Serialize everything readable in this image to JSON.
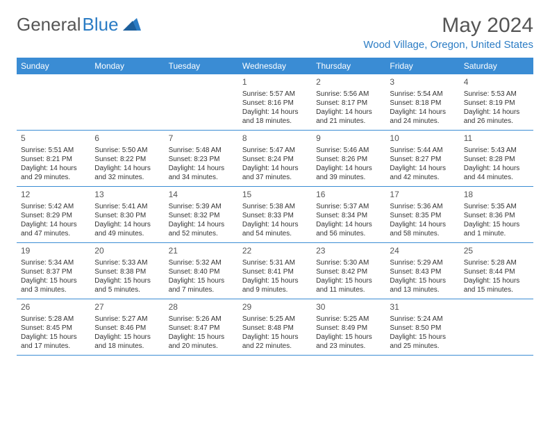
{
  "logo": {
    "text1": "General",
    "text2": "Blue"
  },
  "title": "May 2024",
  "location": "Wood Village, Oregon, United States",
  "colors": {
    "brand": "#3a8cd4",
    "text": "#333333",
    "muted": "#555555"
  },
  "dayHeaders": [
    "Sunday",
    "Monday",
    "Tuesday",
    "Wednesday",
    "Thursday",
    "Friday",
    "Saturday"
  ],
  "weeks": [
    [
      null,
      null,
      null,
      {
        "n": "1",
        "sr": "Sunrise: 5:57 AM",
        "ss": "Sunset: 8:16 PM",
        "d1": "Daylight: 14 hours",
        "d2": "and 18 minutes."
      },
      {
        "n": "2",
        "sr": "Sunrise: 5:56 AM",
        "ss": "Sunset: 8:17 PM",
        "d1": "Daylight: 14 hours",
        "d2": "and 21 minutes."
      },
      {
        "n": "3",
        "sr": "Sunrise: 5:54 AM",
        "ss": "Sunset: 8:18 PM",
        "d1": "Daylight: 14 hours",
        "d2": "and 24 minutes."
      },
      {
        "n": "4",
        "sr": "Sunrise: 5:53 AM",
        "ss": "Sunset: 8:19 PM",
        "d1": "Daylight: 14 hours",
        "d2": "and 26 minutes."
      }
    ],
    [
      {
        "n": "5",
        "sr": "Sunrise: 5:51 AM",
        "ss": "Sunset: 8:21 PM",
        "d1": "Daylight: 14 hours",
        "d2": "and 29 minutes."
      },
      {
        "n": "6",
        "sr": "Sunrise: 5:50 AM",
        "ss": "Sunset: 8:22 PM",
        "d1": "Daylight: 14 hours",
        "d2": "and 32 minutes."
      },
      {
        "n": "7",
        "sr": "Sunrise: 5:48 AM",
        "ss": "Sunset: 8:23 PM",
        "d1": "Daylight: 14 hours",
        "d2": "and 34 minutes."
      },
      {
        "n": "8",
        "sr": "Sunrise: 5:47 AM",
        "ss": "Sunset: 8:24 PM",
        "d1": "Daylight: 14 hours",
        "d2": "and 37 minutes."
      },
      {
        "n": "9",
        "sr": "Sunrise: 5:46 AM",
        "ss": "Sunset: 8:26 PM",
        "d1": "Daylight: 14 hours",
        "d2": "and 39 minutes."
      },
      {
        "n": "10",
        "sr": "Sunrise: 5:44 AM",
        "ss": "Sunset: 8:27 PM",
        "d1": "Daylight: 14 hours",
        "d2": "and 42 minutes."
      },
      {
        "n": "11",
        "sr": "Sunrise: 5:43 AM",
        "ss": "Sunset: 8:28 PM",
        "d1": "Daylight: 14 hours",
        "d2": "and 44 minutes."
      }
    ],
    [
      {
        "n": "12",
        "sr": "Sunrise: 5:42 AM",
        "ss": "Sunset: 8:29 PM",
        "d1": "Daylight: 14 hours",
        "d2": "and 47 minutes."
      },
      {
        "n": "13",
        "sr": "Sunrise: 5:41 AM",
        "ss": "Sunset: 8:30 PM",
        "d1": "Daylight: 14 hours",
        "d2": "and 49 minutes."
      },
      {
        "n": "14",
        "sr": "Sunrise: 5:39 AM",
        "ss": "Sunset: 8:32 PM",
        "d1": "Daylight: 14 hours",
        "d2": "and 52 minutes."
      },
      {
        "n": "15",
        "sr": "Sunrise: 5:38 AM",
        "ss": "Sunset: 8:33 PM",
        "d1": "Daylight: 14 hours",
        "d2": "and 54 minutes."
      },
      {
        "n": "16",
        "sr": "Sunrise: 5:37 AM",
        "ss": "Sunset: 8:34 PM",
        "d1": "Daylight: 14 hours",
        "d2": "and 56 minutes."
      },
      {
        "n": "17",
        "sr": "Sunrise: 5:36 AM",
        "ss": "Sunset: 8:35 PM",
        "d1": "Daylight: 14 hours",
        "d2": "and 58 minutes."
      },
      {
        "n": "18",
        "sr": "Sunrise: 5:35 AM",
        "ss": "Sunset: 8:36 PM",
        "d1": "Daylight: 15 hours",
        "d2": "and 1 minute."
      }
    ],
    [
      {
        "n": "19",
        "sr": "Sunrise: 5:34 AM",
        "ss": "Sunset: 8:37 PM",
        "d1": "Daylight: 15 hours",
        "d2": "and 3 minutes."
      },
      {
        "n": "20",
        "sr": "Sunrise: 5:33 AM",
        "ss": "Sunset: 8:38 PM",
        "d1": "Daylight: 15 hours",
        "d2": "and 5 minutes."
      },
      {
        "n": "21",
        "sr": "Sunrise: 5:32 AM",
        "ss": "Sunset: 8:40 PM",
        "d1": "Daylight: 15 hours",
        "d2": "and 7 minutes."
      },
      {
        "n": "22",
        "sr": "Sunrise: 5:31 AM",
        "ss": "Sunset: 8:41 PM",
        "d1": "Daylight: 15 hours",
        "d2": "and 9 minutes."
      },
      {
        "n": "23",
        "sr": "Sunrise: 5:30 AM",
        "ss": "Sunset: 8:42 PM",
        "d1": "Daylight: 15 hours",
        "d2": "and 11 minutes."
      },
      {
        "n": "24",
        "sr": "Sunrise: 5:29 AM",
        "ss": "Sunset: 8:43 PM",
        "d1": "Daylight: 15 hours",
        "d2": "and 13 minutes."
      },
      {
        "n": "25",
        "sr": "Sunrise: 5:28 AM",
        "ss": "Sunset: 8:44 PM",
        "d1": "Daylight: 15 hours",
        "d2": "and 15 minutes."
      }
    ],
    [
      {
        "n": "26",
        "sr": "Sunrise: 5:28 AM",
        "ss": "Sunset: 8:45 PM",
        "d1": "Daylight: 15 hours",
        "d2": "and 17 minutes."
      },
      {
        "n": "27",
        "sr": "Sunrise: 5:27 AM",
        "ss": "Sunset: 8:46 PM",
        "d1": "Daylight: 15 hours",
        "d2": "and 18 minutes."
      },
      {
        "n": "28",
        "sr": "Sunrise: 5:26 AM",
        "ss": "Sunset: 8:47 PM",
        "d1": "Daylight: 15 hours",
        "d2": "and 20 minutes."
      },
      {
        "n": "29",
        "sr": "Sunrise: 5:25 AM",
        "ss": "Sunset: 8:48 PM",
        "d1": "Daylight: 15 hours",
        "d2": "and 22 minutes."
      },
      {
        "n": "30",
        "sr": "Sunrise: 5:25 AM",
        "ss": "Sunset: 8:49 PM",
        "d1": "Daylight: 15 hours",
        "d2": "and 23 minutes."
      },
      {
        "n": "31",
        "sr": "Sunrise: 5:24 AM",
        "ss": "Sunset: 8:50 PM",
        "d1": "Daylight: 15 hours",
        "d2": "and 25 minutes."
      },
      null
    ]
  ]
}
